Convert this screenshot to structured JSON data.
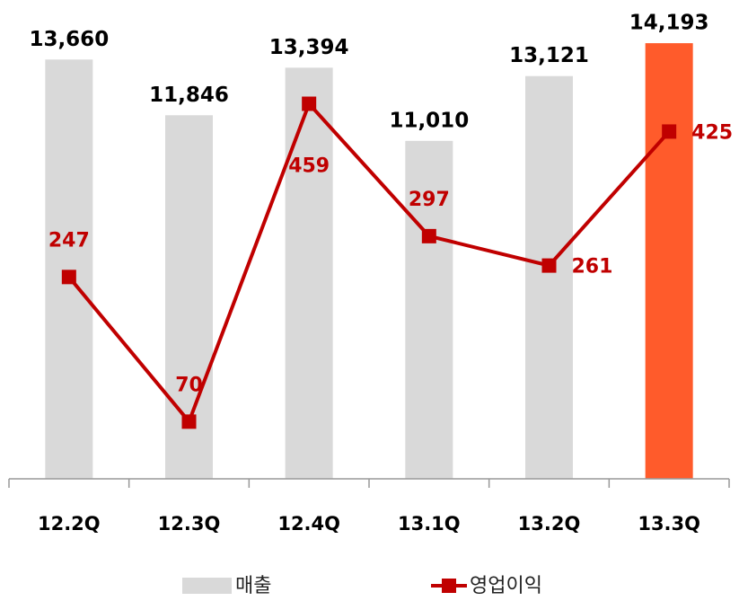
{
  "chart_data": {
    "type": "bar",
    "categories": [
      "12.2Q",
      "12.3Q",
      "12.4Q",
      "13.1Q",
      "13.2Q",
      "13.3Q"
    ],
    "series": [
      {
        "name": "매출",
        "type": "bar",
        "color": "#d9d9d9",
        "colors": [
          "#d9d9d9",
          "#d9d9d9",
          "#d9d9d9",
          "#d9d9d9",
          "#d9d9d9",
          "#ff5b2b"
        ],
        "values": [
          13660,
          11846,
          13394,
          11010,
          13121,
          14193
        ],
        "value_labels": [
          "13,660",
          "11,846",
          "13,394",
          "11,010",
          "13,121",
          "14,193"
        ]
      },
      {
        "name": "영업이익",
        "type": "line",
        "axis": "y2",
        "color": "#c00000",
        "values": [
          247,
          70,
          459,
          297,
          261,
          425
        ]
      }
    ],
    "ylim": [
      0,
      15600
    ],
    "y2lim": [
      0,
      586
    ]
  }
}
